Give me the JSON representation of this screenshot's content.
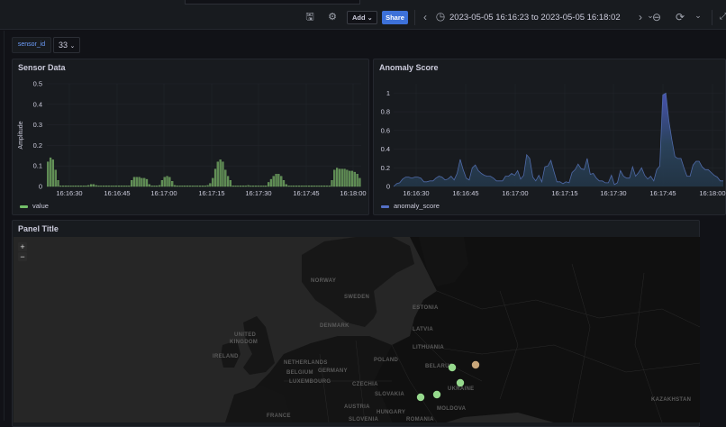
{
  "toolbar": {
    "icons": [
      "save-icon",
      "gear-icon"
    ],
    "add_label": "Add",
    "share_label": "Share",
    "time_range": "2023-05-05 16:16:23 to 2023-05-05 16:18:02",
    "nav_icons": [
      "chevron-left-icon",
      "clock-icon",
      "chevron-down-icon",
      "chevron-right-icon",
      "zoom-out-icon",
      "refresh-icon",
      "chevron-down-icon"
    ],
    "glyphs": {
      "save": "🖫",
      "gear": "⚙",
      "chev_left": "‹",
      "chev_right": "›",
      "chev_down": "⌄",
      "zoom_out": "⊖",
      "refresh": "⟳",
      "clock": "◷"
    }
  },
  "variables": {
    "label": "sensor_id",
    "value": "33"
  },
  "panels": {
    "sensor": {
      "title": "Sensor Data",
      "legend": "value",
      "color": "#73bf69"
    },
    "anomaly": {
      "title": "Anomaly Score",
      "legend": "anomaly_score",
      "color": "#5470c6"
    },
    "map": {
      "title": "Panel Title",
      "zoom_in": "+",
      "zoom_out": "−",
      "labels": [
        "NORWAY",
        "SWEDEN",
        "ESTONIA",
        "LATVIA",
        "LITHUANIA",
        "BELARUS",
        "UNITED",
        "KINGDOM",
        "IRELAND",
        "DENMARK",
        "NETHERLANDS",
        "BELGIUM",
        "LUXEMBOURG",
        "GERMANY",
        "POLAND",
        "CZECHIA",
        "SLOVAKIA",
        "AUSTRIA",
        "HUNGARY",
        "UKRAINE",
        "MOLDOVA",
        "ROMANIA",
        "SLOVENIA",
        "FRANCE",
        "KAZAKHSTAN"
      ],
      "markers": [
        {
          "x": 502,
          "y": 408,
          "color": "#96d98d"
        },
        {
          "x": 528,
          "y": 405,
          "color": "#c8a67a"
        },
        {
          "x": 511,
          "y": 425,
          "color": "#96d98d"
        },
        {
          "x": 467,
          "y": 441,
          "color": "#96d98d"
        },
        {
          "x": 485,
          "y": 438,
          "color": "#96d98d"
        }
      ]
    }
  },
  "chart_data": [
    {
      "type": "bar",
      "title": "Sensor Data",
      "xlabel": "",
      "ylabel": "Amplitude",
      "ylim": [
        0,
        0.5
      ],
      "yticks": [
        "0",
        "0.1",
        "0.2",
        "0.3",
        "0.4",
        "0.5"
      ],
      "xticks": [
        "16:16:30",
        "16:16:45",
        "16:17:00",
        "16:17:15",
        "16:17:30",
        "16:17:45",
        "16:18:00"
      ],
      "legend": [
        "value"
      ],
      "series": [
        {
          "name": "value",
          "values": [
            0.12,
            0.14,
            0.13,
            0.08,
            0.03,
            0,
            0,
            0,
            0,
            0,
            0,
            0,
            0,
            0,
            0,
            0,
            0.005,
            0.01,
            0.01,
            0.005,
            0,
            0,
            0,
            0,
            0,
            0,
            0,
            0,
            0,
            0,
            0,
            0,
            0,
            0.03,
            0.045,
            0.045,
            0.045,
            0.04,
            0.04,
            0.035,
            0.01,
            0,
            0,
            0,
            0.005,
            0.03,
            0.045,
            0.05,
            0.045,
            0.025,
            0.005,
            0,
            0,
            0,
            0,
            0,
            0,
            0,
            0,
            0,
            0,
            0,
            0,
            0.005,
            0.015,
            0.04,
            0.085,
            0.12,
            0.13,
            0.12,
            0.08,
            0.05,
            0.03,
            0,
            0,
            0,
            0,
            0,
            0,
            0.005,
            0,
            0,
            0,
            0,
            0,
            0,
            0,
            0.02,
            0.035,
            0.05,
            0.06,
            0.06,
            0.05,
            0.03,
            0.01,
            0,
            0,
            0,
            0,
            0,
            0,
            0,
            0,
            0,
            0,
            0,
            0,
            0,
            0,
            0,
            0,
            0,
            0.03,
            0.08,
            0.09,
            0.085,
            0.085,
            0.085,
            0.08,
            0.075,
            0.075,
            0.07,
            0.06,
            0.04
          ]
        }
      ]
    },
    {
      "type": "area",
      "title": "Anomaly Score",
      "xlabel": "",
      "ylabel": "",
      "ylim": [
        0,
        1.1
      ],
      "yticks": [
        "0",
        "0.2",
        "0.4",
        "0.6",
        "0.8",
        "1"
      ],
      "xticks": [
        "16:16:30",
        "16:16:45",
        "16:17:00",
        "16:17:15",
        "16:17:30",
        "16:17:45",
        "16:18:00"
      ],
      "legend": [
        "anomaly_score"
      ],
      "series": [
        {
          "name": "anomaly_score",
          "values": [
            0,
            0.03,
            0.04,
            0.08,
            0.1,
            0.1,
            0.09,
            0.1,
            0.1,
            0.09,
            0.05,
            0.05,
            0.06,
            0.06,
            0.09,
            0.11,
            0.1,
            0.07,
            0.08,
            0.11,
            0.07,
            0.14,
            0.29,
            0.18,
            0.09,
            0.07,
            0.2,
            0.23,
            0.17,
            0.14,
            0.12,
            0.11,
            0.11,
            0.09,
            0.06,
            0.06,
            0.06,
            0.11,
            0.11,
            0.14,
            0.12,
            0.17,
            0.08,
            0.12,
            0.34,
            0.3,
            0.1,
            0.06,
            0.12,
            0.05,
            0.21,
            0.22,
            0.28,
            0.16,
            0.05,
            0.05,
            0.03,
            0.05,
            0.04,
            0.15,
            0.18,
            0.24,
            0.19,
            0.18,
            0.3,
            0.13,
            0.14,
            0.09,
            0.06,
            0.06,
            0.04,
            0.04,
            0.12,
            0.02,
            0.04,
            0.17,
            0.11,
            0.09,
            0.09,
            0.21,
            0.11,
            0.15,
            0.2,
            0.12,
            0.08,
            0.11,
            0.06,
            0.18,
            0.22,
            0.98,
            1.0,
            0.7,
            0.5,
            0.32,
            0.3,
            0.3,
            0.2,
            0.11,
            0.11,
            0.23,
            0.27,
            0.27,
            0.21,
            0.18,
            0.18,
            0.15,
            0.12,
            0.1,
            0.06,
            0.06
          ]
        }
      ]
    }
  ]
}
